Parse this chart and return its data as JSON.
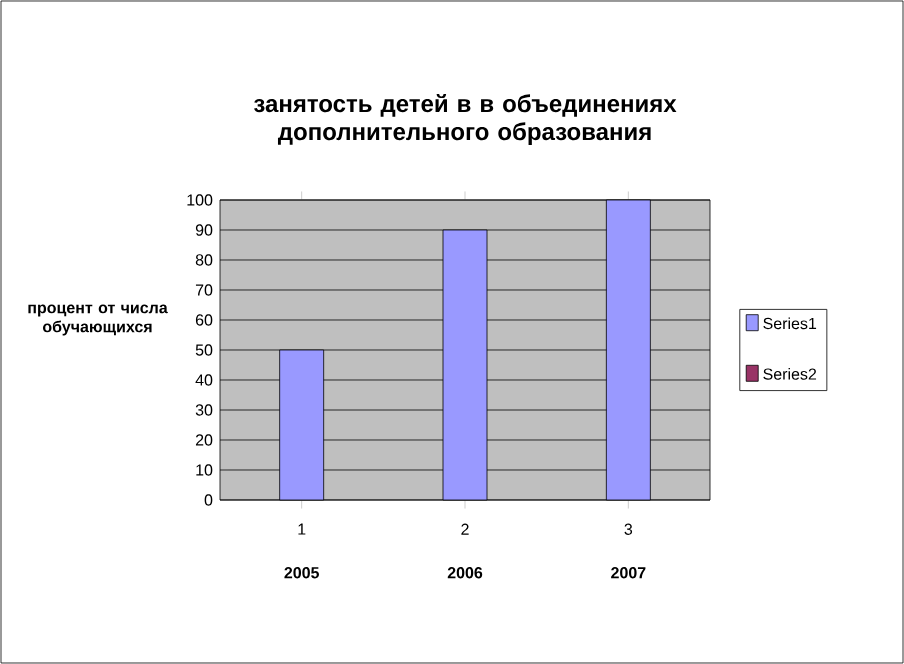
{
  "chart_data": {
    "type": "bar",
    "title": "занятость детей в в объединениях дополнительного образования",
    "ylabel": "процент от числа обучающихся",
    "categories": [
      "1",
      "2",
      "3"
    ],
    "series": [
      {
        "name": "Series1",
        "color": "#9999ff",
        "values": [
          50,
          90,
          100
        ]
      },
      {
        "name": "Series2",
        "color": "#993366",
        "values": [
          null,
          null,
          null
        ]
      }
    ],
    "ylim": [
      0,
      100
    ],
    "yticks": [
      0,
      10,
      20,
      30,
      40,
      50,
      60,
      70,
      80,
      90,
      100
    ],
    "grid": "y",
    "legend": "right",
    "annotations": [
      "2005",
      "2006",
      "2007"
    ]
  }
}
